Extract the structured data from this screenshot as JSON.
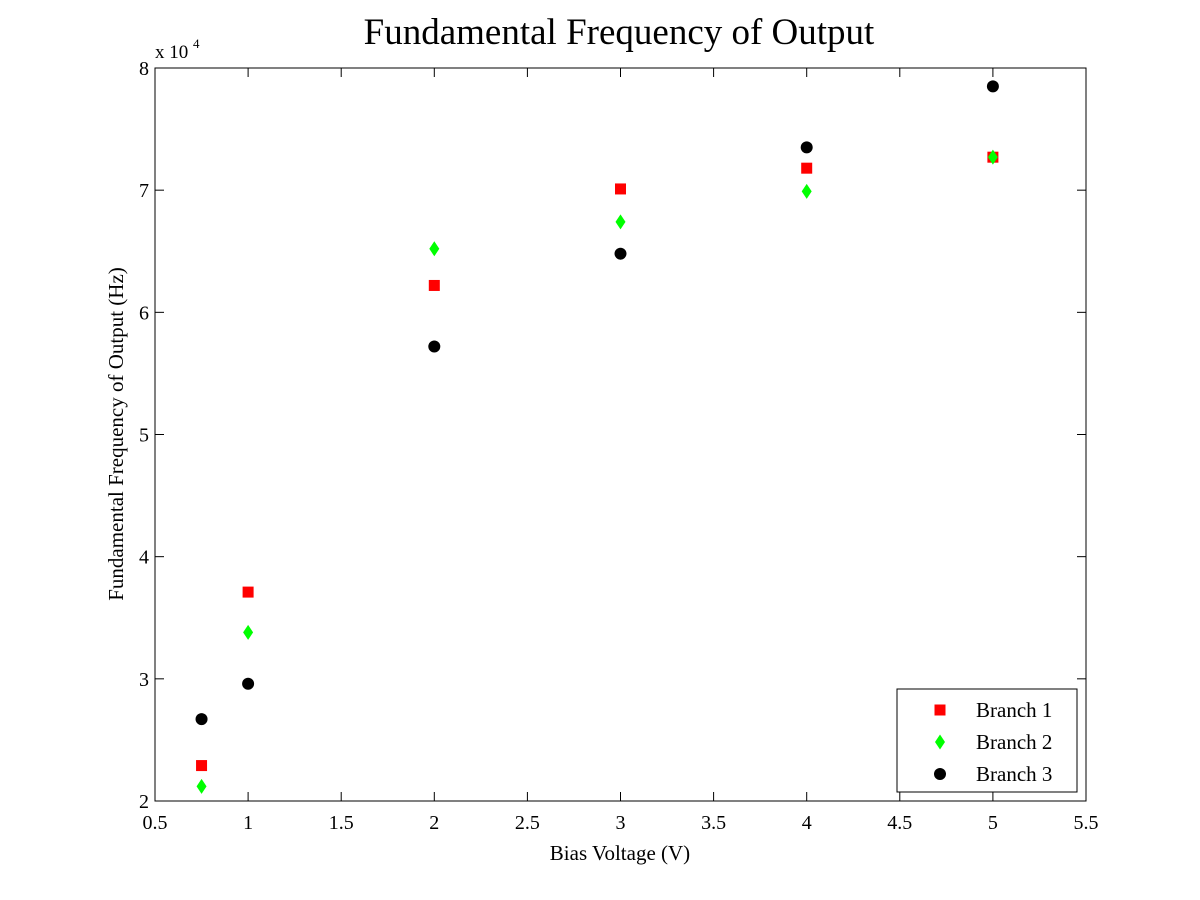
{
  "chart_data": {
    "type": "scatter",
    "title": "Fundamental Frequency of Output",
    "xlabel": "Bias Voltage (V)",
    "ylabel": "Fundamental Frequency of Output (Hz)",
    "xlim": [
      0.5,
      5.5
    ],
    "ylim": [
      20000,
      80000
    ],
    "x_ticks": [
      0.5,
      1,
      1.5,
      2,
      2.5,
      3,
      3.5,
      4,
      4.5,
      5,
      5.5
    ],
    "x_tick_labels": [
      "0.5",
      "1",
      "1.5",
      "2",
      "2.5",
      "3",
      "3.5",
      "4",
      "4.5",
      "5",
      "5.5"
    ],
    "y_ticks": [
      20000,
      30000,
      40000,
      50000,
      60000,
      70000,
      80000
    ],
    "y_tick_labels": [
      "2",
      "3",
      "4",
      "5",
      "6",
      "7",
      "8"
    ],
    "y_exponent_base": "x 10",
    "y_exponent_power": "4",
    "grid": false,
    "legend_position": "bottom-right",
    "x": [
      0.75,
      1,
      2,
      3,
      4,
      5
    ],
    "series": [
      {
        "name": "Branch 1",
        "marker": "square",
        "color": "#ff0000",
        "values": [
          22900,
          37100,
          62200,
          70100,
          71800,
          72700
        ]
      },
      {
        "name": "Branch 2",
        "marker": "diamond",
        "color": "#00ff00",
        "values": [
          21200,
          33800,
          65200,
          67400,
          69900,
          72700
        ]
      },
      {
        "name": "Branch 3",
        "marker": "circle",
        "color": "#000000",
        "values": [
          26700,
          29600,
          57200,
          64800,
          73500,
          78500
        ]
      }
    ]
  }
}
